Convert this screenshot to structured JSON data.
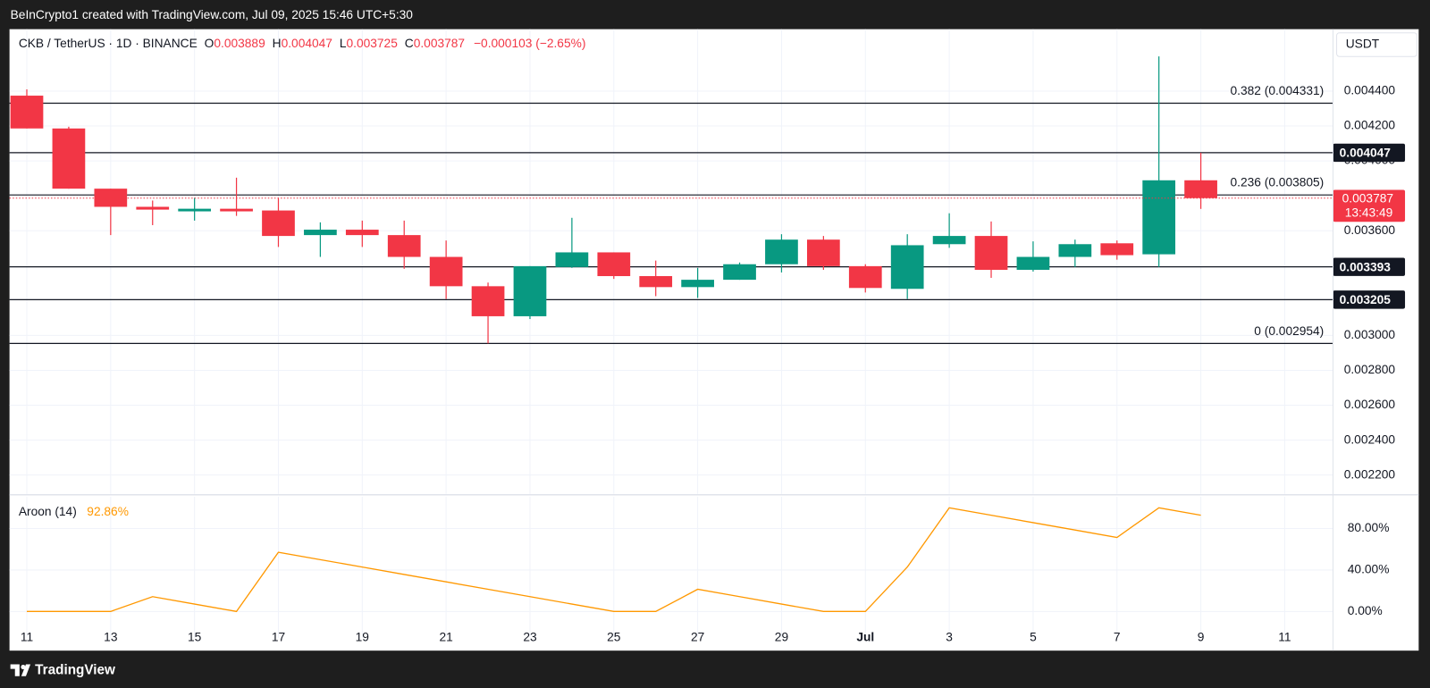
{
  "header": {
    "attribution": "BeInCrypto1 created with TradingView.com, Jul 09, 2025 15:46 UTC+5:30",
    "symbol": "CKB / TetherUS · 1D · BINANCE",
    "currency": "USDT"
  },
  "chart_data": {
    "type": "candlestick",
    "ohlc_labels": [
      "O",
      "H",
      "L",
      "C"
    ],
    "change": "−0.000103 (−2.65%)",
    "categories": [
      "11",
      null,
      "13",
      null,
      "15",
      null,
      "17",
      null,
      "19",
      null,
      "21",
      null,
      "23",
      null,
      "25",
      null,
      "27",
      null,
      "29",
      null,
      "Jul",
      null,
      "3",
      null,
      "5",
      null,
      "7",
      null,
      "9",
      null,
      "11"
    ],
    "open": [
      0.004374,
      0.004186,
      0.003841,
      0.003737,
      0.003711,
      0.003726,
      0.003716,
      0.003575,
      0.003606,
      0.003575,
      0.00345,
      0.003282,
      0.00311,
      0.003392,
      0.003476,
      0.00334,
      0.003277,
      0.003319,
      0.003408,
      0.003549,
      0.003397,
      0.003267,
      0.003523,
      0.00357,
      0.003376,
      0.00345,
      0.003528,
      0.003465,
      0.003889,
      null,
      null
    ],
    "high": [
      0.00441,
      0.004196,
      0.003841,
      0.003773,
      0.003789,
      0.003904,
      0.003789,
      0.003648,
      0.003658,
      0.003658,
      0.003544,
      0.003303,
      0.003397,
      0.003674,
      0.003476,
      0.003429,
      0.003387,
      0.003418,
      0.00358,
      0.00357,
      0.003408,
      0.00358,
      0.0037,
      0.003653,
      0.003539,
      0.003549,
      0.003544,
      0.004599,
      0.004047,
      null,
      null
    ],
    "low": [
      0.004186,
      0.003841,
      0.003575,
      0.003632,
      0.003658,
      0.003685,
      0.003507,
      0.00345,
      0.003507,
      0.003382,
      0.003209,
      0.002954,
      0.003094,
      0.003387,
      0.003324,
      0.003225,
      0.003215,
      0.003319,
      0.003361,
      0.003376,
      0.003246,
      0.003209,
      0.003502,
      0.00333,
      0.003366,
      0.003392,
      0.003434,
      0.003392,
      0.003725,
      null,
      null
    ],
    "close": [
      0.004186,
      0.003841,
      0.003737,
      0.003721,
      0.003726,
      0.003711,
      0.00357,
      0.003606,
      0.003575,
      0.00345,
      0.003282,
      0.00311,
      0.003397,
      0.003476,
      0.00334,
      0.003277,
      0.003319,
      0.003408,
      0.003549,
      0.003397,
      0.003272,
      0.003517,
      0.00357,
      0.003376,
      0.00345,
      0.003523,
      0.00346,
      0.003889,
      0.003787,
      null,
      null
    ],
    "up_color": "#089981",
    "down_color": "#f23645",
    "ylim": [
      0.002092,
      0.004755
    ],
    "yticks": [
      {
        "value": 0.0044,
        "label": "0.004400"
      },
      {
        "value": 0.0042,
        "label": "0.004200"
      },
      {
        "value": 0.004,
        "label": "0.004000"
      },
      {
        "value": 0.0036,
        "label": "0.003600"
      },
      {
        "value": 0.003,
        "label": "0.003000"
      },
      {
        "value": 0.0028,
        "label": "0.002800"
      },
      {
        "value": 0.0026,
        "label": "0.002600"
      },
      {
        "value": 0.0024,
        "label": "0.002400"
      },
      {
        "value": 0.0022,
        "label": "0.002200"
      }
    ],
    "grid": true,
    "price_lines": [
      0.004047,
      0.003393,
      0.003205
    ],
    "fib_levels": [
      {
        "value": 0.004331,
        "label": "0.382 (0.004331)"
      },
      {
        "value": 0.003805,
        "label": "0.236 (0.003805)"
      },
      {
        "value": 0.002954,
        "label": "0 (0.002954)"
      }
    ],
    "countdown": "13:43:49",
    "indicator": {
      "type": "line",
      "name": "Aroon (14)",
      "color": "#ff9800",
      "values": [
        0,
        0,
        0,
        14.29,
        7.14,
        0,
        57.14,
        50,
        42.86,
        35.71,
        28.57,
        21.43,
        14.29,
        7.14,
        0,
        0,
        21.43,
        14.29,
        7.14,
        0,
        0,
        42.86,
        100,
        92.86,
        85.71,
        78.57,
        71.43,
        100,
        92.86,
        null,
        null
      ],
      "value_labels": [
        null,
        null,
        null,
        null,
        null,
        null,
        null,
        null,
        null,
        null,
        null,
        null,
        null,
        null,
        null,
        null,
        null,
        null,
        null,
        null,
        null,
        null,
        null,
        null,
        null,
        null,
        null,
        null,
        "92.86%",
        null,
        null
      ],
      "ylim": [
        -16.7,
        110.8
      ],
      "yticks": [
        {
          "value": 0,
          "label": "0.00%"
        },
        {
          "value": 40,
          "label": "40.00%"
        },
        {
          "value": 80,
          "label": "80.00%"
        }
      ]
    }
  },
  "footer": {
    "brand": "TradingView"
  }
}
